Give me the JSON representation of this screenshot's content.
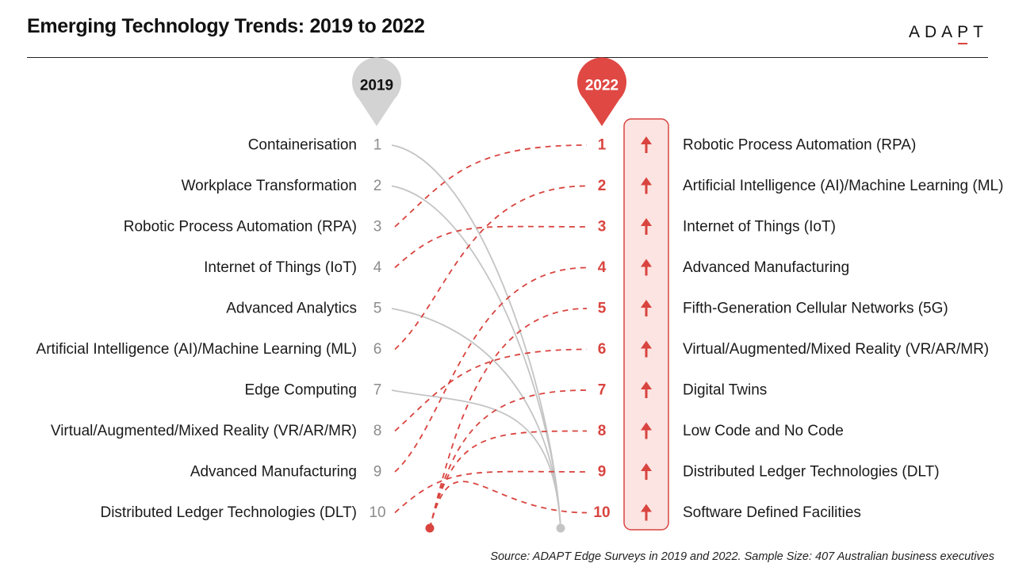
{
  "header": {
    "title": "Emerging Technology Trends: 2019 to 2022",
    "logo": "ADAPT",
    "logo_parts": [
      "ADA",
      "P",
      "T"
    ]
  },
  "chart_data": {
    "type": "slope",
    "title": "Emerging Technology Trends: 2019 to 2022",
    "columns": [
      "2019",
      "2022"
    ],
    "ranks": [
      1,
      2,
      3,
      4,
      5,
      6,
      7,
      8,
      9,
      10
    ],
    "rank_2019": [
      "Containerisation",
      "Workplace Transformation",
      "Robotic Process Automation (RPA)",
      "Internet of Things (IoT)",
      "Advanced Analytics",
      "Artificial Intelligence (AI)/Machine Learning (ML)",
      "Edge Computing",
      "Virtual/Augmented/Mixed Reality (VR/AR/MR)",
      "Advanced Manufacturing",
      "Distributed Ledger Technologies (DLT)"
    ],
    "rank_2022": [
      "Robotic Process Automation (RPA)",
      "Artificial Intelligence (AI)/Machine Learning (ML)",
      "Internet of Things (IoT)",
      "Advanced Manufacturing",
      "Fifth-Generation Cellular Networks (5G)",
      "Virtual/Augmented/Mixed Reality (VR/AR/MR)",
      "Digital Twins",
      "Low Code and No Code",
      "Distributed Ledger Technologies (DLT)",
      "Software Defined Facilities"
    ],
    "rising_links": [
      {
        "from": 3,
        "to": 1
      },
      {
        "from": 6,
        "to": 2
      },
      {
        "from": 4,
        "to": 3
      },
      {
        "from": 9,
        "to": 4
      },
      {
        "from": 8,
        "to": 6
      },
      {
        "from": 10,
        "to": 9
      }
    ],
    "new_entries_2022": [
      5,
      7,
      8,
      10
    ],
    "dropped_2019": [
      1,
      2,
      5,
      7
    ],
    "trend_arrows_2022": [
      "up",
      "up",
      "up",
      "up",
      "up",
      "up",
      "up",
      "up",
      "up",
      "up"
    ],
    "colors": {
      "rise": "#d9443f",
      "drop": "#c4c4c4",
      "pin_2019": "#d3d3d3",
      "pin_2022": "#e04843",
      "box_fill": "#fbe4e2",
      "box_stroke": "#d9443f",
      "rank_2019": "#8c8c8c"
    }
  },
  "footer": {
    "source": "Source: ADAPT Edge Surveys in 2019 and 2022. Sample Size: 407 Australian business executives"
  }
}
